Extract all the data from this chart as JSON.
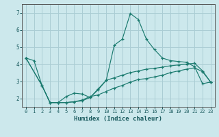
{
  "xlabel": "Humidex (Indice chaleur)",
  "xlim": [
    -0.5,
    23.5
  ],
  "ylim": [
    1.5,
    7.5
  ],
  "xticks": [
    0,
    1,
    2,
    3,
    4,
    5,
    6,
    7,
    8,
    9,
    10,
    11,
    12,
    13,
    14,
    15,
    16,
    17,
    18,
    19,
    20,
    21,
    22,
    23
  ],
  "yticks": [
    2,
    3,
    4,
    5,
    6,
    7
  ],
  "background_color": "#cce8ec",
  "grid_color": "#aacdd4",
  "line_color": "#1a7a6e",
  "line1_x": [
    0,
    1,
    2,
    3,
    4,
    5,
    6,
    7,
    8,
    9,
    10,
    11,
    12,
    13,
    14,
    15,
    16,
    17,
    18,
    19,
    20,
    21,
    22,
    23
  ],
  "line1_y": [
    4.35,
    4.2,
    2.75,
    1.75,
    1.75,
    2.1,
    2.3,
    2.25,
    2.05,
    2.55,
    3.05,
    5.1,
    5.45,
    6.95,
    6.6,
    5.45,
    4.85,
    4.35,
    4.2,
    4.15,
    4.1,
    3.85,
    2.85,
    2.95
  ],
  "line2_x": [
    0,
    2,
    3,
    4,
    5,
    6,
    7,
    8,
    9,
    10,
    11,
    12,
    13,
    14,
    15,
    16,
    17,
    18,
    19,
    20,
    21,
    22,
    23
  ],
  "line2_y": [
    4.35,
    2.75,
    1.75,
    1.75,
    1.75,
    1.8,
    1.85,
    2.05,
    2.5,
    3.05,
    3.2,
    3.35,
    3.5,
    3.6,
    3.7,
    3.75,
    3.82,
    3.9,
    3.95,
    4.0,
    4.05,
    3.6,
    2.95
  ],
  "line3_x": [
    0,
    2,
    3,
    4,
    5,
    6,
    7,
    8,
    9,
    10,
    11,
    12,
    13,
    14,
    15,
    16,
    17,
    18,
    19,
    20,
    21,
    22,
    23
  ],
  "line3_y": [
    4.35,
    2.75,
    1.75,
    1.75,
    1.75,
    1.8,
    1.9,
    2.1,
    2.2,
    2.4,
    2.6,
    2.75,
    2.95,
    3.1,
    3.15,
    3.25,
    3.35,
    3.5,
    3.6,
    3.7,
    3.78,
    3.55,
    2.95
  ]
}
